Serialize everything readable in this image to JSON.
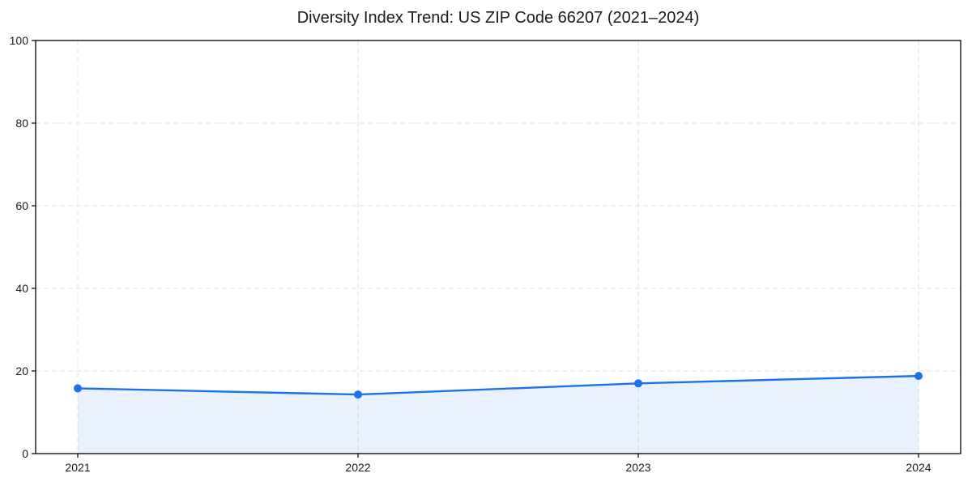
{
  "chart_data": {
    "type": "line",
    "title": "Diversity Index Trend: US ZIP Code 66207 (2021–2024)",
    "categories": [
      "2021",
      "2022",
      "2023",
      "2024"
    ],
    "series": [
      {
        "name": "Diversity Index",
        "values": [
          15.8,
          14.3,
          17.0,
          18.8
        ]
      }
    ],
    "xlabel": "",
    "ylabel": "",
    "ylim": [
      0,
      100
    ],
    "yticks": [
      0,
      20,
      40,
      60,
      80,
      100
    ],
    "grid": true,
    "grid_style": "dashed",
    "legend": "none",
    "area_fill": true,
    "marker": "circle",
    "colors": {
      "line": "#1a73e8",
      "marker": "#1a73e8",
      "area_fill": "rgba(26,115,232,0.10)",
      "grid": "#e1e1e1",
      "axis": "#000000",
      "tick_text": "#1a1a1a",
      "background": "#ffffff"
    }
  }
}
